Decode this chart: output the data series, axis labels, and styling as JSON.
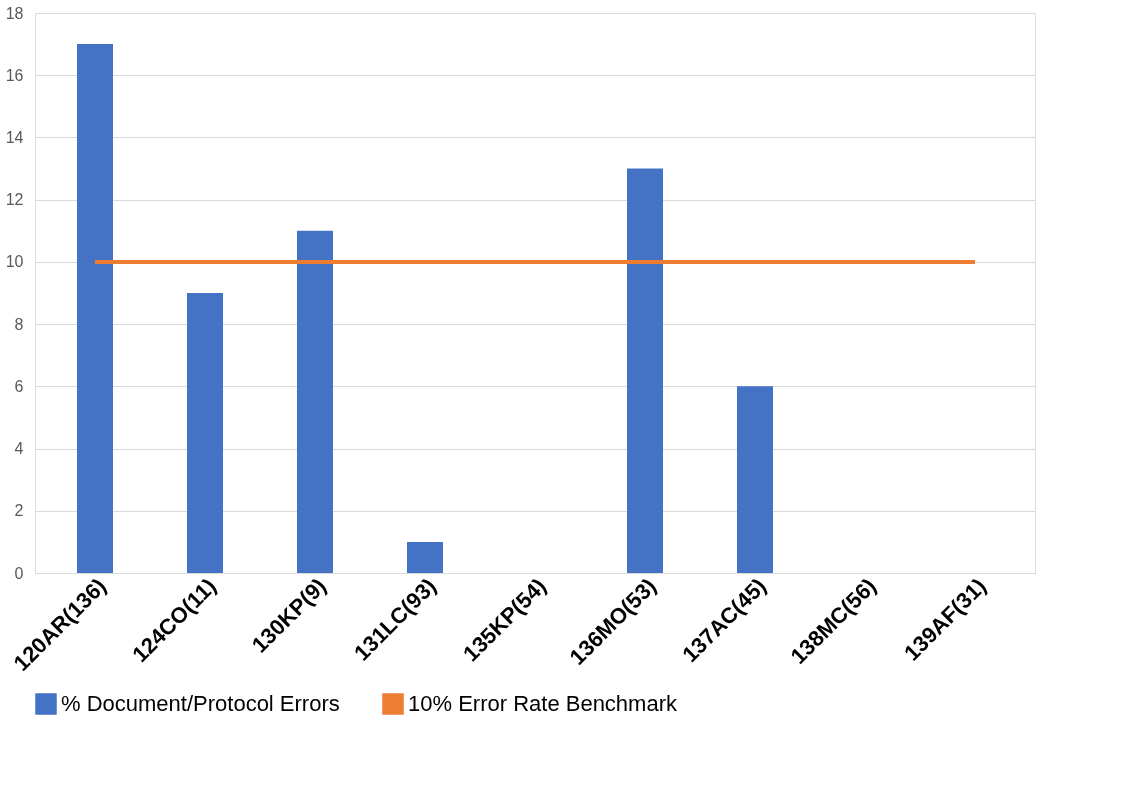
{
  "chart_data": {
    "type": "bar",
    "categories": [
      "120AR(136)",
      "124CO(11)",
      "130KP(9)",
      "131LC(93)",
      "135KP(54)",
      "136MO(53)",
      "137AC(45)",
      "138MC(56)",
      "139AF(31)"
    ],
    "series": [
      {
        "name": "% Document/Protocol Errors",
        "color": "#4472c4",
        "values": [
          17,
          9,
          11,
          1,
          0,
          13,
          6,
          0,
          0
        ]
      },
      {
        "name": "10% Error Rate Benchmark",
        "color": "#ed7d31",
        "type": "line",
        "values": [
          10,
          10,
          10,
          10,
          10,
          10,
          10,
          10,
          10
        ]
      }
    ],
    "ylim": [
      0,
      18
    ],
    "yticks": [
      0,
      2,
      4,
      6,
      8,
      10,
      12,
      14,
      16,
      18
    ],
    "grid": "y",
    "legend": "bottom",
    "marker": "none",
    "line_style": "solid"
  }
}
